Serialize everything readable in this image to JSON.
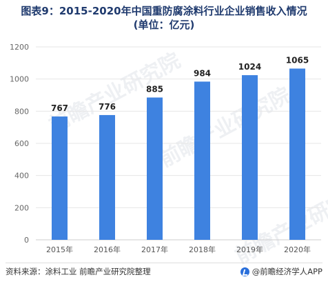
{
  "title_line1": "图表9：2015-2020年中国重防腐涂料行业企业销售收入情况",
  "title_line2": "(单位：亿元)",
  "footer": {
    "source": "资料来源：涂料工业 前瞻产业研究院整理",
    "brand": "@前瞻经济学人APP"
  },
  "watermark": "前瞻产业研究院",
  "colors": {
    "bar": "#3e82e0",
    "title": "#1f3a6e",
    "grid": "#e6e6e6"
  },
  "chart_data": {
    "type": "bar",
    "categories": [
      "2015年",
      "2016年",
      "2017年",
      "2018年",
      "2019年",
      "2020年"
    ],
    "values": [
      767,
      776,
      885,
      984,
      1024,
      1065
    ],
    "title": "图表9：2015-2020年中国重防腐涂料行业企业销售收入情况 (单位：亿元)",
    "xlabel": "",
    "ylabel": "",
    "ylim": [
      0,
      1200
    ],
    "yticks": [
      0,
      200,
      400,
      600,
      800,
      1000,
      1200
    ],
    "grid": true,
    "legend": "none"
  }
}
